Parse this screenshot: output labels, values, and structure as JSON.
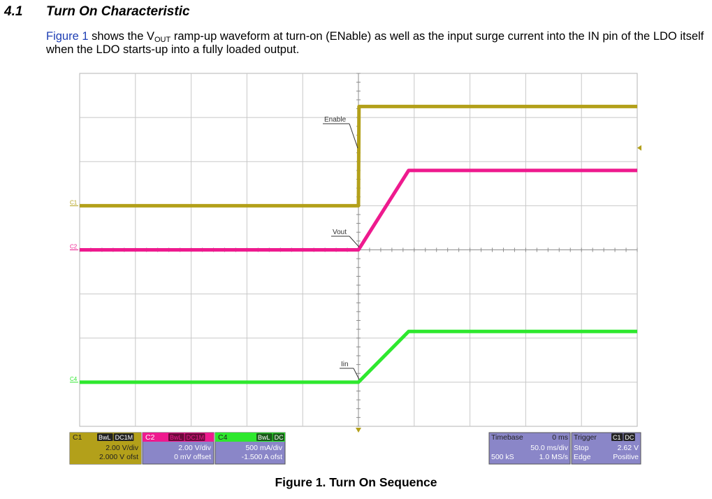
{
  "section": {
    "number": "4.1",
    "title": "Turn On Characteristic",
    "para_link": "Figure 1",
    "para_a": " shows the V",
    "para_sub": "OUT",
    "para_b": " ramp-up waveform at turn-on (ENable) as well as the input surge current into the IN pin of the LDO itself when the LDO starts-up into a fully loaded output."
  },
  "colors": {
    "c1": "#b3a01a",
    "c2": "#ee1a8e",
    "c4": "#2ee82e",
    "grid": "#c8c8c8",
    "panel_bg": "#8a86c8"
  },
  "chart_data": {
    "type": "line",
    "title": "",
    "xlabel": "",
    "ylabel": "",
    "x_unit": "ms",
    "xlim": [
      -250,
      250
    ],
    "ylim_div": [
      -4,
      4
    ],
    "grid": true,
    "series": [
      {
        "name": "C1",
        "label": "Enable",
        "unit": "V",
        "volts_per_div": 2.0,
        "offset": 2.0,
        "points": [
          [
            -250,
            0
          ],
          [
            0,
            0
          ],
          [
            0.5,
            4.5
          ],
          [
            250,
            4.5
          ]
        ]
      },
      {
        "name": "C2",
        "label": "Vout",
        "unit": "V",
        "volts_per_div": 2.0,
        "offset": 0,
        "points": [
          [
            -250,
            0
          ],
          [
            0,
            0
          ],
          [
            45,
            3.6
          ],
          [
            250,
            3.6
          ]
        ]
      },
      {
        "name": "C4",
        "label": "Iin",
        "unit": "A",
        "amps_per_div": 0.5,
        "offset": -1.5,
        "points": [
          [
            -250,
            0
          ],
          [
            0,
            0
          ],
          [
            45,
            0.575
          ],
          [
            250,
            0.575
          ]
        ]
      }
    ],
    "panels": {
      "c1": {
        "name": "C1",
        "bw": "BwL",
        "cpl": "DC1M",
        "vdiv": "2.00 V/div",
        "ofst": "2.000 V ofst"
      },
      "c2": {
        "name": "C2",
        "bw": "BwL",
        "cpl": "DC1M",
        "vdiv": "2.00 V/div",
        "ofst": "0 mV offset"
      },
      "c4": {
        "name": "C4",
        "bw": "BwL",
        "cpl": "DC",
        "vdiv": "500 mA/div",
        "ofst": "-1.500 A ofst"
      },
      "timebase": {
        "label": "Timebase",
        "delay": "0 ms",
        "tdiv": "50.0 ms/div",
        "samples": "500 kS",
        "rate": "1.0 MS/s"
      },
      "trigger": {
        "label": "Trigger",
        "src": "C1",
        "cpl": "DC",
        "mode": "Stop",
        "level": "2.62 V",
        "type": "Edge",
        "slope": "Positive"
      }
    },
    "caption": "Figure 1. Turn On Sequence"
  }
}
